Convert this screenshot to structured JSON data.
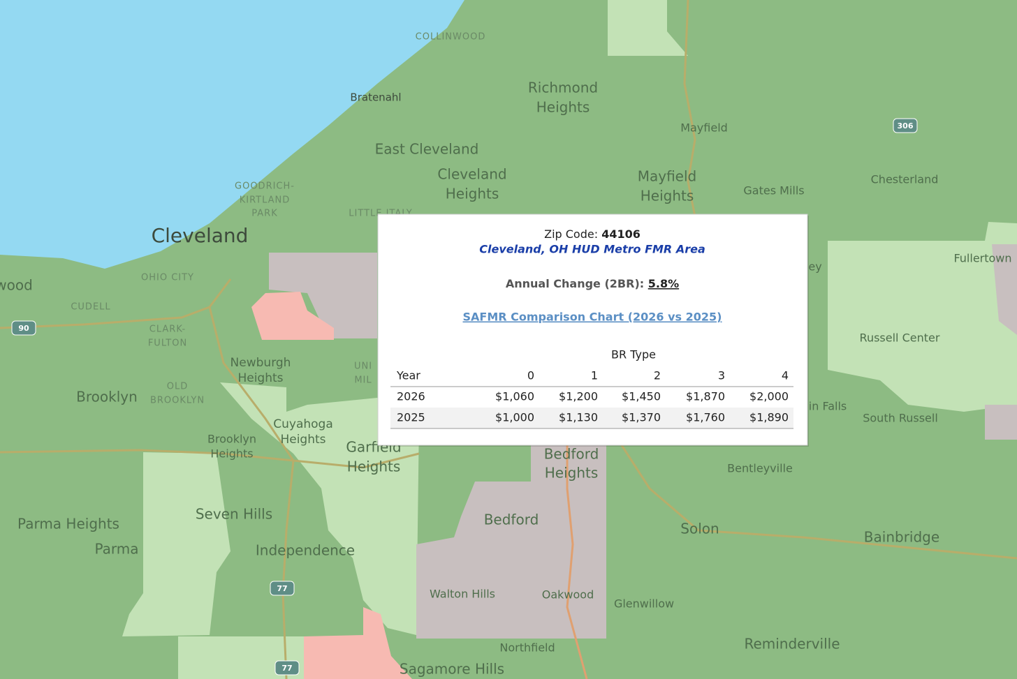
{
  "map": {
    "labels": [
      "COLLINWOOD",
      "Bratenahl",
      "Richmond",
      "Heights",
      "Mayfield",
      "Chesterland",
      "East Cleveland",
      "Cleveland",
      "Heights",
      "Mayfield",
      "Heights",
      "Gates Mills",
      "GOODRICH-",
      "KIRTLAND",
      "PARK",
      "LITTLE ITALY",
      "Cleveland",
      "OHIO CITY",
      "wood",
      "CUDELL",
      "CLARK-",
      "FULTON",
      "Newburgh",
      "Heights",
      "Brooklyn",
      "OLD",
      "BROOKLYN",
      "Cuyahoga",
      "Heights",
      "Brooklyn",
      "Heights",
      "Garfield",
      "Heights",
      "Bedford",
      "Heights",
      "Fullertown",
      "Russell Center",
      "ey",
      "in Falls",
      "South Russell",
      "Bentleyville",
      "Seven Hills",
      "Parma Heights",
      "Parma",
      "Independence",
      "Bedford",
      "Solon",
      "Bainbridge",
      "Walton Hills",
      "Oakwood",
      "Glenwillow",
      "Northfield",
      "Reminderville",
      "Sagamore Hills",
      "UNI",
      "MIL"
    ],
    "shields": [
      "306",
      "90",
      "77",
      "77"
    ]
  },
  "popup": {
    "zip_label": "Zip Code:",
    "zip": "44106",
    "area": "Cleveland, OH HUD Metro FMR Area",
    "change_label": "Annual Change (2BR):",
    "change": "5.8%",
    "link": "SAFMR Comparison Chart (2026 vs 2025)",
    "table": {
      "group_header": "BR Type",
      "columns": [
        "Year",
        "0",
        "1",
        "2",
        "3",
        "4"
      ],
      "rows": [
        [
          "2026",
          "$1,060",
          "$1,200",
          "$1,450",
          "$1,870",
          "$2,000"
        ],
        [
          "2025",
          "$1,000",
          "$1,130",
          "$1,370",
          "$1,760",
          "$1,890"
        ]
      ]
    }
  }
}
